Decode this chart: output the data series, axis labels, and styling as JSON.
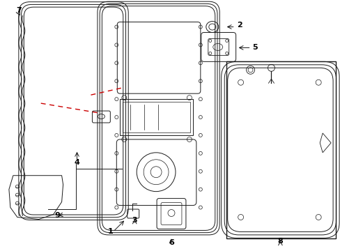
{
  "background": "#ffffff",
  "line_color": "#1a1a1a",
  "red_dashed_color": "#cc0000",
  "fig_width": 4.89,
  "fig_height": 3.6,
  "dpi": 100
}
